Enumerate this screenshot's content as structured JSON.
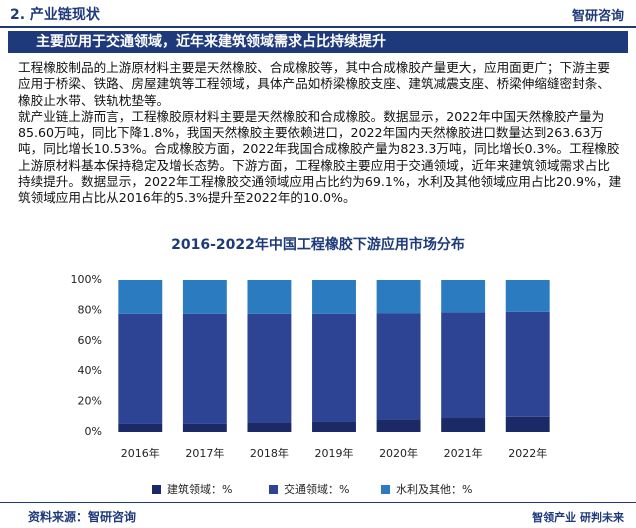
{
  "header": {
    "section": "2. 产业链现状",
    "logo": "智研咨询"
  },
  "banner": "主要应用于交通领域，近年来建筑领域需求占比持续提升",
  "paragraphs": [
    "工程橡胶制品的上游原材料主要是天然橡胶、合成橡胶等，其中合成橡胶产量更大，应用面更广；下游主要应用于桥梁、铁路、房屋建筑等工程领域，具体产品如桥梁橡胶支座、建筑减震支座、桥梁伸缩缝密封条、橡胶止水带、铁轨枕垫等。",
    "就产业链上游而言，工程橡胶原材料主要是天然橡胶和合成橡胶。数据显示，2022年中国天然橡胶产量为85.60万吨，同比下降1.8%，我国天然橡胶主要依赖进口，2022年国内天然橡胶进口数量达到263.63万吨，同比增长10.53%。合成橡胶方面，2022年我国合成橡胶产量为823.3万吨，同比增长0.3%。工程橡胶上游原材料基本保持稳定及增长态势。下游方面，工程橡胶主要应用于交通领域，近年来建筑领域需求占比持续提升。数据显示，2022年工程橡胶交通领域应用占比约为69.1%，水利及其他领域应用占比20.9%，建筑领域应用占比从2016年的5.3%提升至2022年的10.0%。"
  ],
  "chart_data": {
    "type": "stacked_bar",
    "title": "2016-2022年中国工程橡胶下游应用市场分布",
    "categories": [
      "2016年",
      "2017年",
      "2018年",
      "2019年",
      "2020年",
      "2021年",
      "2022年"
    ],
    "series": [
      {
        "name": "建筑领域：%",
        "color": "#1b2a66",
        "values": [
          5.3,
          5.5,
          6.2,
          7.0,
          8.3,
          9.2,
          10.0
        ]
      },
      {
        "name": "交通领域：%",
        "color": "#2d4495",
        "values": [
          72.4,
          72.3,
          71.5,
          70.8,
          69.9,
          69.5,
          69.1
        ]
      },
      {
        "name": "水利及其他：%",
        "color": "#2b7bc0",
        "values": [
          22.3,
          22.2,
          22.3,
          22.2,
          21.8,
          21.3,
          20.9
        ]
      }
    ],
    "ylim": [
      0,
      100
    ],
    "yticks": [
      {
        "value": 0,
        "label": "0%"
      },
      {
        "value": 20,
        "label": "20%"
      },
      {
        "value": 40,
        "label": "40%"
      },
      {
        "value": 60,
        "label": "60%"
      },
      {
        "value": 80,
        "label": "80%"
      },
      {
        "value": 100,
        "label": "100%"
      }
    ],
    "grid": false
  },
  "footer": {
    "source": "资料来源：智研咨询",
    "slogan": "智领产业 研判未来"
  }
}
